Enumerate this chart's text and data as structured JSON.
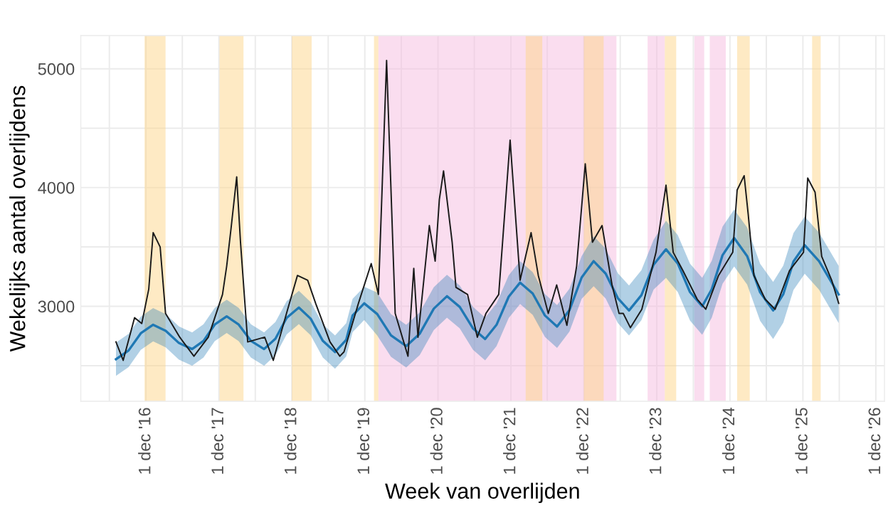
{
  "chart_data": {
    "type": "line",
    "xlabel": "Week van overlijden",
    "ylabel": "Wekelijks aantal overlijdens",
    "xlim": [
      "2016-01-10",
      "2027-01-13"
    ],
    "ylim": [
      2200,
      5280
    ],
    "xticks": [
      {
        "value": "2016-06-01",
        "label": null
      },
      {
        "value": "2016-12-01",
        "label": "1 dec '16"
      },
      {
        "value": "2017-06-01",
        "label": null
      },
      {
        "value": "2017-12-01",
        "label": "1 dec '17"
      },
      {
        "value": "2018-06-01",
        "label": null
      },
      {
        "value": "2018-12-01",
        "label": "1 dec '18"
      },
      {
        "value": "2019-06-01",
        "label": null
      },
      {
        "value": "2019-12-01",
        "label": "1 dec '19"
      },
      {
        "value": "2020-06-01",
        "label": null
      },
      {
        "value": "2020-12-01",
        "label": "1 dec '20"
      },
      {
        "value": "2021-06-01",
        "label": null
      },
      {
        "value": "2021-12-01",
        "label": "1 dec '21"
      },
      {
        "value": "2022-06-01",
        "label": null
      },
      {
        "value": "2022-12-01",
        "label": "1 dec '22"
      },
      {
        "value": "2023-06-01",
        "label": null
      },
      {
        "value": "2023-12-01",
        "label": "1 dec '23"
      },
      {
        "value": "2024-06-01",
        "label": null
      },
      {
        "value": "2024-12-01",
        "label": "1 dec '24"
      },
      {
        "value": "2025-06-01",
        "label": null
      },
      {
        "value": "2025-12-01",
        "label": "1 dec '25"
      },
      {
        "value": "2026-06-01",
        "label": null
      },
      {
        "value": "2026-12-01",
        "label": "1 dec '26"
      }
    ],
    "yticks": [
      {
        "value": 2500,
        "label": null
      },
      3000,
      {
        "value": 3500,
        "label": null
      },
      4000,
      {
        "value": 4500,
        "label": null
      },
      5000
    ],
    "grid": true,
    "legend": false,
    "marker": "none",
    "line_style": "solid",
    "bands": [
      {
        "axis": "x",
        "from": "2016-11-24",
        "to": "2017-03-09",
        "color": "#fdd68a"
      },
      {
        "axis": "x",
        "from": "2017-12-04",
        "to": "2018-04-03",
        "color": "#fdd68a"
      },
      {
        "axis": "x",
        "from": "2018-12-01",
        "to": "2019-03-10",
        "color": "#fdd68a"
      },
      {
        "axis": "x",
        "from": "2020-01-16",
        "to": "2020-02-07",
        "color": "#fdd68a"
      },
      {
        "axis": "x",
        "from": "2020-02-07",
        "to": "2023-05-13",
        "color": "#f5bce0"
      },
      {
        "axis": "x",
        "from": "2022-02-13",
        "to": "2022-05-07",
        "color": "#fdd68a"
      },
      {
        "axis": "x",
        "from": "2022-12-01",
        "to": "2023-03-10",
        "color": "#fdd68a"
      },
      {
        "axis": "x",
        "from": "2023-10-16",
        "to": "2024-01-10",
        "color": "#f5bce0"
      },
      {
        "axis": "x",
        "from": "2024-01-10",
        "to": "2024-03-07",
        "color": "#fdd68a"
      },
      {
        "axis": "x",
        "from": "2024-06-06",
        "to": "2024-07-25",
        "color": "#f5bce0"
      },
      {
        "axis": "x",
        "from": "2024-08-22",
        "to": "2024-11-10",
        "color": "#f5bce0"
      },
      {
        "axis": "x",
        "from": "2025-01-06",
        "to": "2025-03-10",
        "color": "#fdd68a"
      },
      {
        "axis": "x",
        "from": "2026-01-16",
        "to": "2026-02-28",
        "color": "#fdd68a"
      }
    ],
    "series": [
      {
        "color": "#1f78b4",
        "x": [
          "2016-07-04",
          "2016-09-05",
          "2016-11-05",
          "2017-01-06",
          "2017-03-10",
          "2017-05-15",
          "2017-07-20",
          "2017-09-15",
          "2017-11-10",
          "2018-01-09",
          "2018-03-10",
          "2018-05-10",
          "2018-07-15",
          "2018-09-10",
          "2018-11-05",
          "2019-01-05",
          "2019-03-05",
          "2019-05-05",
          "2019-07-05",
          "2019-08-30",
          "2019-10-01",
          "2019-11-28",
          "2020-02-01",
          "2020-04-10",
          "2020-06-25",
          "2020-09-01",
          "2020-11-10",
          "2021-01-15",
          "2021-03-20",
          "2021-05-25",
          "2021-07-25",
          "2021-09-20",
          "2021-11-20",
          "2022-01-16",
          "2022-03-20",
          "2022-05-20",
          "2022-07-20",
          "2022-09-20",
          "2022-11-20",
          "2023-01-19",
          "2023-03-20",
          "2023-05-20",
          "2023-07-15",
          "2023-09-15",
          "2023-11-15",
          "2024-01-16",
          "2024-03-15",
          "2024-05-15",
          "2024-07-15",
          "2024-09-01",
          "2024-10-25",
          "2024-12-22",
          "2025-02-25",
          "2025-05-01",
          "2025-07-05",
          "2025-08-25",
          "2025-10-15",
          "2025-12-10",
          "2026-02-20",
          "2026-05-29"
        ],
        "values": [
          2555,
          2628,
          2773,
          2845,
          2794,
          2691,
          2640,
          2709,
          2846,
          2915,
          2846,
          2709,
          2640,
          2728,
          2903,
          2990,
          2896,
          2709,
          2615,
          2718,
          2923,
          3025,
          2935,
          2755,
          2665,
          2770,
          2980,
          3085,
          2995,
          2815,
          2725,
          2844,
          3081,
          3200,
          3108,
          2923,
          2830,
          2968,
          3243,
          3380,
          3276,
          3069,
          2965,
          3094,
          3351,
          3480,
          3360,
          3120,
          3000,
          3144,
          3431,
          3575,
          3423,
          3118,
          2965,
          3103,
          3378,
          3515,
          3380,
          3100
        ],
        "lower": [
          2415,
          2488,
          2633,
          2705,
          2654,
          2551,
          2500,
          2569,
          2706,
          2775,
          2706,
          2569,
          2500,
          2588,
          2763,
          2850,
          2756,
          2569,
          2475,
          2578,
          2783,
          2885,
          2755,
          2575,
          2485,
          2590,
          2800,
          2905,
          2815,
          2635,
          2545,
          2664,
          2901,
          3020,
          2928,
          2743,
          2650,
          2788,
          3063,
          3170,
          3066,
          2859,
          2755,
          2884,
          3141,
          3240,
          3120,
          2880,
          2760,
          2904,
          3191,
          3335,
          3183,
          2878,
          2725,
          2863,
          3138,
          3275,
          3140,
          2860
        ],
        "upper": [
          2695,
          2768,
          2913,
          2985,
          2934,
          2831,
          2780,
          2849,
          2986,
          3055,
          2986,
          2849,
          2780,
          2868,
          3043,
          3130,
          3036,
          2849,
          2755,
          2858,
          3063,
          3165,
          3115,
          2935,
          2845,
          2950,
          3160,
          3265,
          3175,
          2995,
          2905,
          3024,
          3261,
          3380,
          3288,
          3103,
          3010,
          3148,
          3423,
          3590,
          3486,
          3279,
          3175,
          3304,
          3561,
          3720,
          3600,
          3360,
          3240,
          3384,
          3671,
          3815,
          3663,
          3358,
          3205,
          3343,
          3618,
          3755,
          3620,
          3340
        ]
      },
      {
        "color": "#1a1a1a",
        "x": [
          "2016-07-04",
          "2016-08-09",
          "2016-10-05",
          "2016-11-10",
          "2016-12-15",
          "2017-01-06",
          "2017-02-10",
          "2017-03-09",
          "2017-05-19",
          "2017-07-29",
          "2017-10-09",
          "2017-12-19",
          "2018-01-09",
          "2018-01-31",
          "2018-02-28",
          "2018-03-19",
          "2018-04-24",
          "2018-07-18",
          "2018-08-30",
          "2018-11-10",
          "2018-12-29",
          "2019-02-18",
          "2019-03-30",
          "2019-06-10",
          "2019-07-29",
          "2019-08-19",
          "2019-10-30",
          "2020-01-02",
          "2020-02-07",
          "2020-03-19",
          "2020-05-01",
          "2020-07-04",
          "2020-08-02",
          "2020-08-23",
          "2020-10-19",
          "2020-11-17",
          "2020-12-08",
          "2020-12-29",
          "2021-02-10",
          "2021-03-01",
          "2021-04-28",
          "2021-06-16",
          "2021-07-29",
          "2021-10-01",
          "2021-11-27",
          "2022-01-16",
          "2022-03-12",
          "2022-04-17",
          "2022-06-06",
          "2022-07-18",
          "2022-09-07",
          "2022-10-26",
          "2022-12-08",
          "2023-01-13",
          "2023-03-02",
          "2023-04-21",
          "2023-05-26",
          "2023-06-16",
          "2023-07-22",
          "2023-09-17",
          "2023-11-27",
          "2024-01-16",
          "2024-02-21",
          "2024-04-10",
          "2024-06-20",
          "2024-08-02",
          "2024-10-05",
          "2024-12-15",
          "2025-01-06",
          "2025-02-10",
          "2025-03-02",
          "2025-03-31",
          "2025-05-26",
          "2025-07-15",
          "2025-09-25",
          "2025-12-04",
          "2025-12-25",
          "2026-01-31",
          "2026-03-05",
          "2026-04-24",
          "2026-05-29"
        ],
        "values": [
          2700,
          2545,
          2905,
          2855,
          3145,
          3620,
          3500,
          2940,
          2740,
          2580,
          2740,
          3100,
          3340,
          3660,
          4090,
          3540,
          2700,
          2740,
          2545,
          2975,
          3260,
          3220,
          3025,
          2700,
          2580,
          2617,
          3025,
          3360,
          3100,
          5070,
          2940,
          2580,
          3320,
          2740,
          3680,
          3380,
          3900,
          4140,
          3540,
          3160,
          3100,
          2740,
          2940,
          3100,
          4400,
          3220,
          3620,
          3260,
          2940,
          3180,
          2840,
          3340,
          4200,
          3540,
          3680,
          3180,
          2940,
          2940,
          2820,
          2975,
          3455,
          4020,
          3455,
          3300,
          3060,
          2975,
          3260,
          3455,
          3980,
          4100,
          3780,
          3260,
          3060,
          2975,
          3300,
          3455,
          4080,
          3960,
          3420,
          3220,
          3025
        ]
      }
    ]
  }
}
